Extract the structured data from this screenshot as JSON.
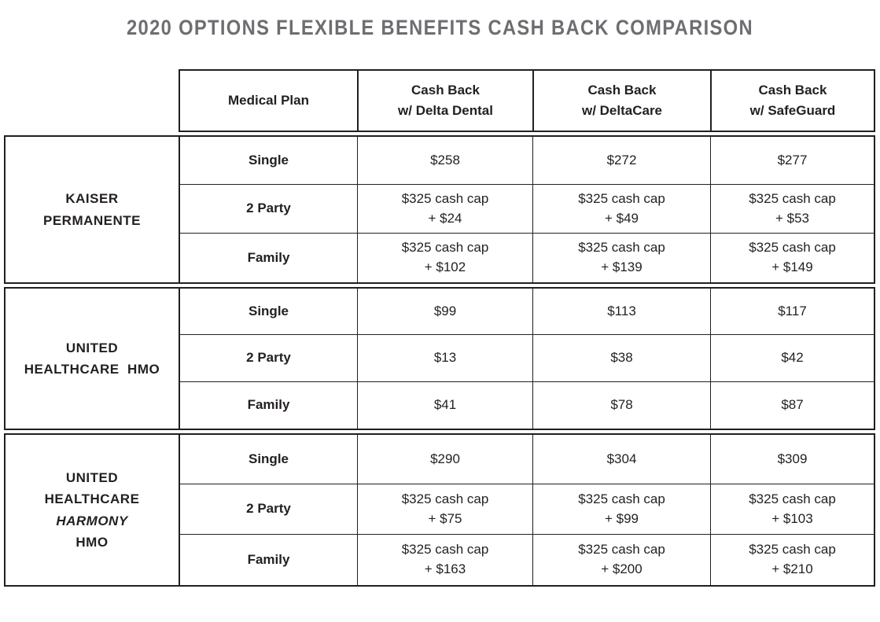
{
  "title": "2020 OPTIONS FLEXIBLE BENEFITS CASH BACK COMPARISON",
  "table": {
    "header": {
      "plan_label": "Medical Plan",
      "columns": [
        "Cash Back\nw/ Delta Dental",
        "Cash Back\nw/ DeltaCare",
        "Cash Back\nw/ SafeGuard"
      ]
    },
    "groups": [
      {
        "name_lines": [
          "KAISER",
          "PERMANENTE"
        ],
        "rows": [
          {
            "tier": "Single",
            "values": [
              "$258",
              "$272",
              "$277"
            ]
          },
          {
            "tier": "2 Party",
            "values": [
              "$325 cash cap\n+ $24",
              "$325 cash cap\n+ $49",
              "$325 cash cap\n+ $53"
            ]
          },
          {
            "tier": "Family",
            "values": [
              "$325 cash cap\n+ $102",
              "$325 cash cap\n+ $139",
              "$325 cash cap\n+ $149"
            ]
          }
        ]
      },
      {
        "name_lines": [
          "UNITED",
          "HEALTHCARE  HMO"
        ],
        "rows": [
          {
            "tier": "Single",
            "values": [
              "$99",
              "$113",
              "$117"
            ]
          },
          {
            "tier": "2 Party",
            "values": [
              "$13",
              "$38",
              "$42"
            ]
          },
          {
            "tier": "Family",
            "values": [
              "$41",
              "$78",
              "$87"
            ]
          }
        ]
      },
      {
        "name_lines": [
          "UNITED",
          "HEALTHCARE",
          "HARMONY",
          "HMO"
        ],
        "rows": [
          {
            "tier": "Single",
            "values": [
              "$290",
              "$304",
              "$309"
            ]
          },
          {
            "tier": "2 Party",
            "values": [
              "$325 cash cap\n+ $75",
              "$325 cash cap\n+ $99",
              "$325 cash cap\n+ $103"
            ]
          },
          {
            "tier": "Family",
            "values": [
              "$325 cash cap\n+ $163",
              "$325 cash cap\n+ $200",
              "$325 cash cap\n+ $210"
            ]
          }
        ]
      }
    ]
  },
  "colors": {
    "title_gray": "#6d6e71",
    "text": "#231f20",
    "border": "#231f20",
    "background": "#ffffff"
  }
}
